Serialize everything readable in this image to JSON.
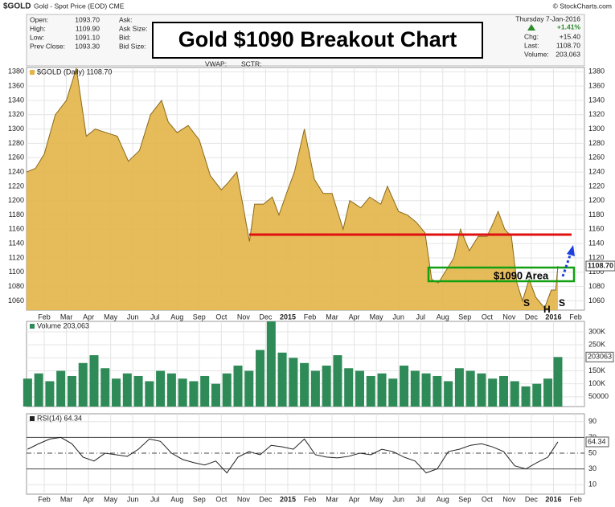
{
  "header": {
    "symbol": "$GOLD",
    "name": "Gold - Spot Price (EOD) CME",
    "credit": "© StockCharts.com",
    "date": "Thursday  7-Jan-2016",
    "change_pct": "+1.41%",
    "left_fields": [
      [
        "Open:",
        "1093.70"
      ],
      [
        "High:",
        "1109.90"
      ],
      [
        "Low:",
        "1091.10"
      ],
      [
        "Prev Close:",
        "1093.30"
      ]
    ],
    "mid_fields": [
      "Ask:",
      "Ask Size:",
      "Bid:",
      "Bid Size:"
    ],
    "right_fields": [
      [
        "Chg:",
        "+15.40"
      ],
      [
        "Last:",
        "1108.70"
      ],
      [
        "Volume:",
        "203,063"
      ]
    ],
    "hidden_fields": [
      "VWAP:",
      "SCTR:"
    ]
  },
  "title": "Gold $1090 Breakout Chart",
  "annotations": {
    "area": "$1090 Area",
    "left_shoulder": "S",
    "head": "H",
    "right_shoulder": "S"
  },
  "chart_data": [
    {
      "type": "area",
      "legend": "$GOLD (Daily) 1108.70",
      "last_label": "1108.70",
      "color": "#e3b448",
      "x": [
        -0.8,
        -0.4,
        0,
        0.5,
        1,
        1.45,
        1.9,
        2.3,
        2.8,
        3.3,
        3.8,
        4.3,
        4.8,
        5.3,
        5.6,
        6,
        6.5,
        7,
        7.5,
        8,
        8.3,
        8.7,
        9.27,
        9.5,
        9.9,
        10.3,
        10.6,
        11,
        11.3,
        11.75,
        12.2,
        12.6,
        13,
        13.5,
        13.8,
        14.3,
        14.7,
        15.2,
        15.5,
        16,
        16.4,
        16.8,
        17.2,
        17.5,
        17.8,
        18.2,
        18.5,
        18.8,
        19.2,
        19.6,
        20,
        20.3,
        20.5,
        20.8,
        21.1,
        21.35,
        21.6,
        21.9,
        22.2,
        22.6,
        22.9,
        23.1,
        23.2
      ],
      "values": [
        1240,
        1245,
        1265,
        1320,
        1340,
        1385,
        1290,
        1300,
        1295,
        1290,
        1255,
        1270,
        1320,
        1340,
        1310,
        1295,
        1305,
        1285,
        1235,
        1215,
        1225,
        1240,
        1143,
        1195,
        1195,
        1205,
        1180,
        1215,
        1240,
        1300,
        1230,
        1210,
        1210,
        1160,
        1200,
        1190,
        1205,
        1195,
        1220,
        1185,
        1180,
        1170,
        1155,
        1090,
        1085,
        1105,
        1120,
        1160,
        1130,
        1150,
        1150,
        1170,
        1185,
        1160,
        1150,
        1085,
        1060,
        1090,
        1065,
        1050,
        1075,
        1075,
        1108.7
      ],
      "xlim": [
        -0.8,
        24.4
      ],
      "xticks": [
        {
          "value": 0,
          "label": "Feb"
        },
        {
          "value": 1,
          "label": "Mar"
        },
        {
          "value": 2,
          "label": "Apr"
        },
        {
          "value": 3,
          "label": "May"
        },
        {
          "value": 4,
          "label": "Jun"
        },
        {
          "value": 5,
          "label": "Jul"
        },
        {
          "value": 6,
          "label": "Aug"
        },
        {
          "value": 7,
          "label": "Sep"
        },
        {
          "value": 8,
          "label": "Oct"
        },
        {
          "value": 9,
          "label": "Nov"
        },
        {
          "value": 10,
          "label": "Dec"
        },
        {
          "value": 11,
          "label": "2015"
        },
        {
          "value": 12,
          "label": "Feb"
        },
        {
          "value": 13,
          "label": "Mar"
        },
        {
          "value": 14,
          "label": "Apr"
        },
        {
          "value": 15,
          "label": "May"
        },
        {
          "value": 16,
          "label": "Jun"
        },
        {
          "value": 17,
          "label": "Jul"
        },
        {
          "value": 18,
          "label": "Aug"
        },
        {
          "value": 19,
          "label": "Sep"
        },
        {
          "value": 20,
          "label": "Oct"
        },
        {
          "value": 21,
          "label": "Nov"
        },
        {
          "value": 22,
          "label": "Dec"
        },
        {
          "value": 23,
          "label": "2016"
        },
        {
          "value": 24,
          "label": "Feb"
        }
      ],
      "ylim": [
        1047,
        1386
      ],
      "yticks": [
        1060,
        1080,
        1100,
        1120,
        1140,
        1160,
        1180,
        1200,
        1220,
        1240,
        1260,
        1280,
        1300,
        1320,
        1340,
        1360,
        1380
      ],
      "grid": true
    },
    {
      "type": "bar",
      "legend": "Volume 203,063",
      "color": "#2e8b57",
      "x": [
        -0.75,
        -0.25,
        0.25,
        0.75,
        1.25,
        1.75,
        2.25,
        2.75,
        3.25,
        3.75,
        4.25,
        4.75,
        5.25,
        5.75,
        6.25,
        6.75,
        7.25,
        7.75,
        8.25,
        8.75,
        9.25,
        9.75,
        10.25,
        10.75,
        11.25,
        11.75,
        12.25,
        12.75,
        13.25,
        13.75,
        14.25,
        14.75,
        15.25,
        15.75,
        16.25,
        16.75,
        17.25,
        17.75,
        18.25,
        18.75,
        19.25,
        19.75,
        20.25,
        20.75,
        21.25,
        21.75,
        22.25,
        22.75,
        23.2
      ],
      "values": [
        120000,
        140000,
        110000,
        150000,
        130000,
        180000,
        210000,
        160000,
        120000,
        140000,
        130000,
        110000,
        150000,
        140000,
        120000,
        110000,
        130000,
        100000,
        140000,
        170000,
        150000,
        230000,
        340000,
        220000,
        200000,
        180000,
        150000,
        170000,
        210000,
        160000,
        150000,
        130000,
        140000,
        120000,
        170000,
        150000,
        140000,
        130000,
        110000,
        160000,
        150000,
        140000,
        120000,
        130000,
        110000,
        90000,
        100000,
        120000,
        203063
      ],
      "xlim": [
        -0.8,
        24.4
      ],
      "ylim": [
        12500,
        340000
      ],
      "yticks": [
        50000,
        {
          "value": 100000,
          "label": "100K"
        },
        {
          "value": 150000,
          "label": "150K"
        },
        {
          "value": 200000,
          "label": "200K"
        },
        {
          "value": 250000,
          "label": "250K"
        },
        {
          "value": 300000,
          "label": "300K"
        }
      ],
      "grid": true
    },
    {
      "type": "line",
      "legend": "RSI(14) 64.34",
      "color": "#222222",
      "x": [
        -0.75,
        -0.25,
        0.25,
        0.75,
        1.25,
        1.75,
        2.25,
        2.75,
        3.25,
        3.75,
        4.25,
        4.75,
        5.25,
        5.75,
        6.25,
        6.75,
        7.25,
        7.75,
        8.25,
        8.75,
        9.25,
        9.75,
        10.25,
        10.75,
        11.25,
        11.75,
        12.25,
        12.75,
        13.25,
        13.75,
        14.25,
        14.75,
        15.25,
        15.75,
        16.25,
        16.75,
        17.25,
        17.75,
        18.25,
        18.75,
        19.25,
        19.75,
        20.25,
        20.75,
        21.25,
        21.75,
        22.25,
        22.75,
        23.2
      ],
      "values": [
        55,
        62,
        68,
        70,
        62,
        45,
        40,
        50,
        48,
        46,
        55,
        68,
        65,
        50,
        42,
        38,
        35,
        40,
        25,
        45,
        52,
        48,
        60,
        58,
        55,
        68,
        48,
        45,
        44,
        46,
        50,
        48,
        55,
        52,
        45,
        40,
        25,
        30,
        52,
        55,
        60,
        62,
        58,
        52,
        34,
        30,
        38,
        45,
        64.34
      ],
      "xlim": [
        -0.8,
        24.4
      ],
      "xticks": [
        {
          "value": 0,
          "label": "Feb"
        },
        {
          "value": 1,
          "label": "Mar"
        },
        {
          "value": 2,
          "label": "Apr"
        },
        {
          "value": 3,
          "label": "May"
        },
        {
          "value": 4,
          "label": "Jun"
        },
        {
          "value": 5,
          "label": "Jul"
        },
        {
          "value": 6,
          "label": "Aug"
        },
        {
          "value": 7,
          "label": "Sep"
        },
        {
          "value": 8,
          "label": "Oct"
        },
        {
          "value": 9,
          "label": "Nov"
        },
        {
          "value": 10,
          "label": "Dec"
        },
        {
          "value": 11,
          "label": "2015"
        },
        {
          "value": 12,
          "label": "Feb"
        },
        {
          "value": 13,
          "label": "Mar"
        },
        {
          "value": 14,
          "label": "Apr"
        },
        {
          "value": 15,
          "label": "May"
        },
        {
          "value": 16,
          "label": "Jun"
        },
        {
          "value": 17,
          "label": "Jul"
        },
        {
          "value": 18,
          "label": "Aug"
        },
        {
          "value": 19,
          "label": "Sep"
        },
        {
          "value": 20,
          "label": "Oct"
        },
        {
          "value": 21,
          "label": "Nov"
        },
        {
          "value": 22,
          "label": "Dec"
        },
        {
          "value": 23,
          "label": "2016"
        },
        {
          "value": 24,
          "label": "Feb"
        }
      ],
      "ylim": [
        -2,
        100
      ],
      "yticks": [
        10,
        30,
        50,
        70,
        90
      ],
      "grid": true
    }
  ]
}
